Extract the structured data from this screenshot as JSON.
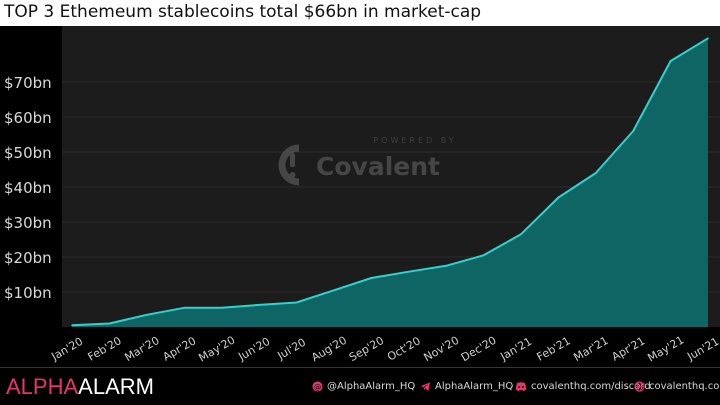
{
  "title": "TOP 3 Ethemeum stablecoins total $66bn in market-cap",
  "watermark": {
    "powered_by": "POWERED BY",
    "brand": "Covalent"
  },
  "footer": {
    "brand_alpha": "ALPHA",
    "brand_alarm": "ALARM",
    "links": [
      {
        "icon": "at-icon",
        "text": "@AlphaAlarm_HQ"
      },
      {
        "icon": "telegram-icon",
        "text": "AlphaAlarm_HQ"
      },
      {
        "icon": "discord-icon",
        "text": "covalenthq.com/discord"
      },
      {
        "icon": "globe-icon",
        "text": "covalenthq.com"
      }
    ]
  },
  "colors": {
    "line": "#2ed3cf",
    "fill": "#0f6563",
    "plot_bg": "#1c1c1c",
    "grid": "#2c2c2c",
    "accent": "#e8336d"
  },
  "chart_data": {
    "type": "area",
    "x": [
      "Jan'20",
      "Feb'20",
      "Mar'20",
      "Apr'20",
      "May'20",
      "Jun'20",
      "Jul'20",
      "Aug'20",
      "Sep'20",
      "Oct'20",
      "Nov'20",
      "Dec'20",
      "Jan'21",
      "Feb'21",
      "Mar'21",
      "Apr'21",
      "May'21",
      "Jun'21"
    ],
    "values": [
      0.5,
      1.0,
      3.5,
      5.5,
      5.5,
      6.3,
      7.0,
      10.5,
      14.0,
      15.8,
      17.5,
      20.5,
      26.5,
      37.0,
      44.0,
      56.0,
      76.0,
      82.5
    ],
    "yticks": [
      "$10bn",
      "$20bn",
      "$30bn",
      "$40bn",
      "$50bn",
      "$60bn",
      "$70bn"
    ],
    "ytick_values": [
      10,
      20,
      30,
      40,
      50,
      60,
      70
    ],
    "ylim": [
      0,
      86
    ],
    "grid": true,
    "legend": "none"
  }
}
